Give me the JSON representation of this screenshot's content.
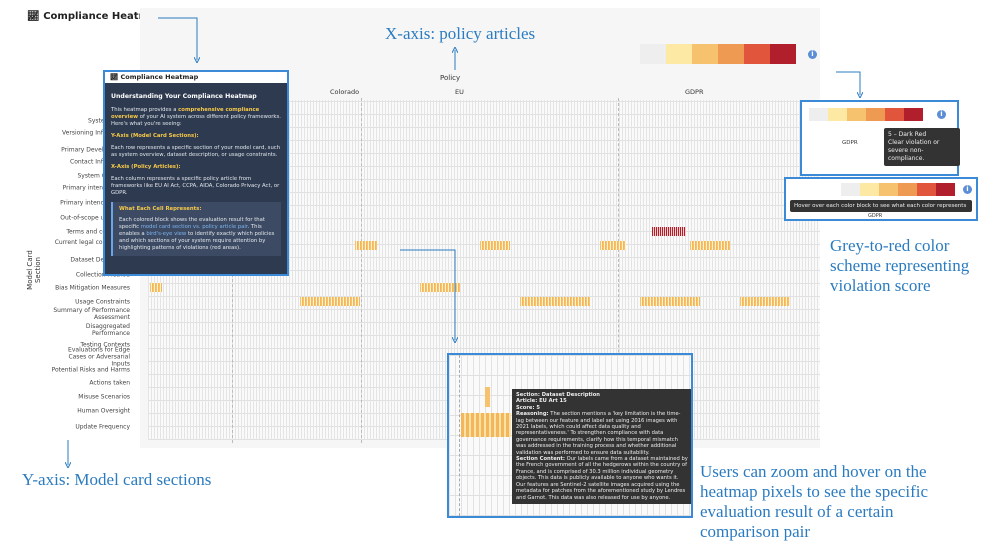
{
  "header": {
    "title": "Compliance Heatmap"
  },
  "annotations": {
    "x_axis": "X-axis: policy articles",
    "y_axis": "Y-axis: Model card sections",
    "color_scheme": "Grey-to-red color scheme representing violation score",
    "zoom_hover": "Users can zoom and hover on the heatmap pixels to see the specific evaluation result of a certain comparison pair"
  },
  "legend": {
    "colors": [
      "#eeeeee",
      "#fde9a4",
      "#f6c26e",
      "#ee9a53",
      "#e0553b",
      "#b11e2c"
    ]
  },
  "heatmap": {
    "x_title": "Policy",
    "groups": [
      "Colorado",
      "EU",
      "GDPR"
    ],
    "y_title": "Model Card Section",
    "rows": [
      "System Name",
      "Versioning Information",
      "Primary Developer/Org",
      "Contact Information",
      "System Overview",
      "Primary intended uses",
      "Primary intended users",
      "Out-of-scope use cases",
      "Terms and conditions",
      "Current legal compliance status",
      "Dataset Description",
      "Collection Method",
      "Bias Mitigation Measures",
      "Usage Constraints",
      "Summary of Performance Assessment",
      "Disaggregated Performance",
      "Testing Contexts",
      "Evaluations for Edge Cases or Adversarial Inputs",
      "Potential Risks and Harms",
      "Actions taken",
      "Misuse Scenarios",
      "Human Oversight",
      "Update Frequency"
    ]
  },
  "popup": {
    "title": "Compliance Heatmap",
    "heading": "Understanding Your Compliance Heatmap",
    "intro_pre": "This heatmap provides a ",
    "intro_highlight": "comprehensive compliance overview",
    "intro_post": " of your AI system across different policy frameworks. Here's what you're seeing:",
    "y_heading": "Y-Axis (Model Card Sections):",
    "y_text": "Each row represents a specific section of your model card, such as system overview, dataset description, or usage constraints.",
    "x_heading": "X-Axis (Policy Articles):",
    "x_text": "Each column represents a specific policy article from frameworks like EU AI Act, CCPA, AIDA, Colorado Privacy Act, or GDPR.",
    "cell_heading": "What Each Cell Represents:",
    "cell_1": "Each colored block shows the evaluation result for that specific ",
    "cell_2": "model card section vs. policy article pair",
    "cell_3": ". This enables a ",
    "cell_4": "bird's-eye view",
    "cell_5": " to identify exactly which policies and which sections of your system require attention by highlighting patterns of violations (red areas)."
  },
  "legend_callout": {
    "group": "GDPR",
    "score_title": "5 – Dark Red",
    "score_text": "Clear violation or severe non-compliance.",
    "hint": "Hover over each color block to see what each color represents",
    "hint_group": "GDPR"
  },
  "tooltip": {
    "section": "Section: Dataset Description",
    "article": "Article: EU Art 15",
    "score": "Score: 5",
    "reasoning_label": "Reasoning:",
    "reasoning": " The section mentions a 'key limitation is the time-lag between our feature and label set using 2016 images with 2021 labels, which could affect data quality and representativeness.' To strengthen compliance with data governance requirements, clarify how this temporal mismatch was addressed in the training process and whether additional validation was performed to ensure data suitability.",
    "content_label": "Section Content:",
    "content": " Our labels came from a dataset maintained by the French government of all the hedgerows within the country of France, and is comprised of 30.3 million individual geometry objects. This data is publicly available to anyone who wants it. Our features are Sentinel-2 satellite images acquired using the metadata for patches from the aforementioned study by Lendres and Garnot. This data was also released for use by anyone."
  }
}
